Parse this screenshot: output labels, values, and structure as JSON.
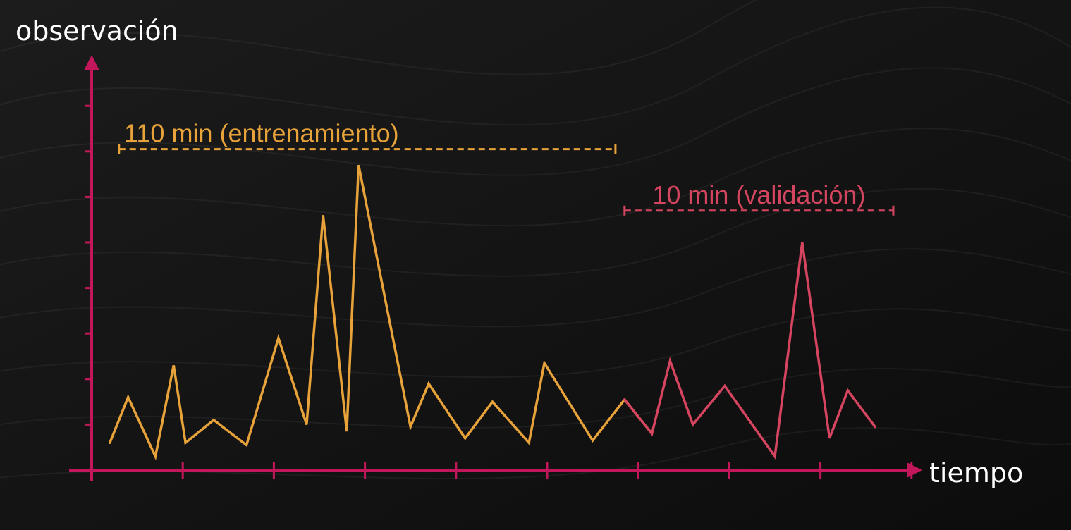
{
  "chart_data": {
    "type": "line",
    "ylabel": "observación",
    "xlabel": "tiempo",
    "colors": {
      "axis": "#c2185b",
      "train": "#e8a23a",
      "validation": "#d64560",
      "background": "#121212"
    },
    "xlim": [
      0,
      120
    ],
    "ylim": [
      0,
      10
    ],
    "x_ticks": [
      10,
      20,
      30,
      40,
      50,
      60,
      70,
      80,
      90
    ],
    "y_ticks": [
      1,
      2,
      3,
      4,
      5,
      6,
      7,
      8
    ],
    "series": [
      {
        "key": "train",
        "points": [
          [
            2,
            0.6
          ],
          [
            4,
            1.6
          ],
          [
            7,
            0.3
          ],
          [
            9,
            2.3
          ],
          [
            10.3,
            0.6
          ],
          [
            13.4,
            1.1
          ],
          [
            17,
            0.55
          ],
          [
            20.5,
            2.9
          ],
          [
            23.6,
            1.0
          ],
          [
            25.4,
            5.6
          ],
          [
            28,
            0.85
          ],
          [
            29.3,
            6.7
          ],
          [
            35,
            0.95
          ],
          [
            37,
            1.9
          ],
          [
            41,
            0.7
          ],
          [
            44,
            1.5
          ],
          [
            48,
            0.6
          ],
          [
            49.7,
            2.35
          ],
          [
            55,
            0.65
          ],
          [
            58.5,
            1.55
          ],
          [
            61.5,
            0.8
          ]
        ]
      },
      {
        "key": "validation",
        "points": [
          [
            58.5,
            1.55
          ],
          [
            61.5,
            0.8
          ],
          [
            63.5,
            2.4
          ],
          [
            66,
            1.0
          ],
          [
            69.5,
            1.85
          ],
          [
            75,
            0.3
          ],
          [
            78,
            5.0
          ],
          [
            81,
            0.7
          ],
          [
            83,
            1.75
          ],
          [
            86,
            0.95
          ]
        ]
      }
    ],
    "annotations": [
      {
        "key": "train",
        "label": "110 min (entrenamiento)",
        "x_start": 3,
        "x_end": 57.5,
        "y": 7.05
      },
      {
        "key": "validation",
        "label": "10 min (validación)",
        "x_start": 58.5,
        "x_end": 88,
        "y": 5.7
      }
    ]
  }
}
